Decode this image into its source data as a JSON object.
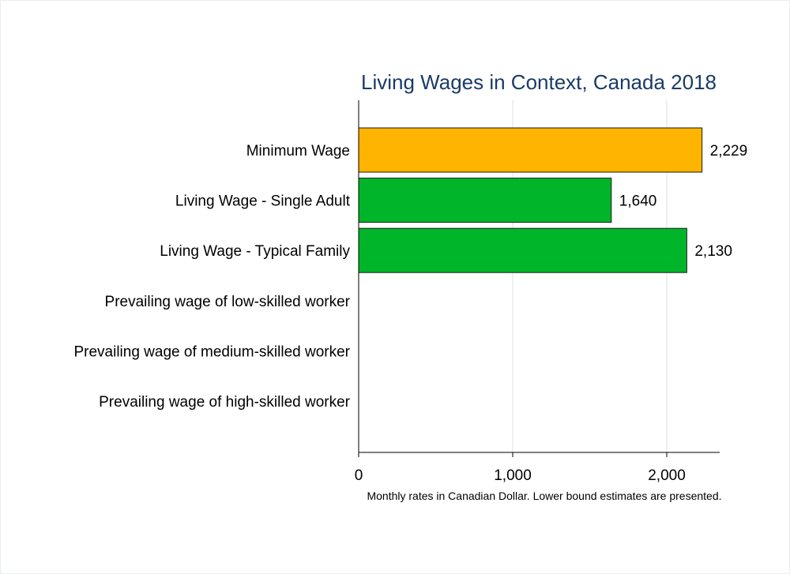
{
  "chart_data": {
    "type": "bar",
    "orientation": "horizontal",
    "title": "Living Wages in Context, Canada 2018",
    "categories": [
      "Minimum Wage",
      "Living Wage - Single Adult",
      "Living Wage - Typical Family",
      "Prevailing wage of low-skilled worker",
      "Prevailing wage of medium-skilled worker",
      "Prevailing wage of high-skilled worker"
    ],
    "values": [
      2229,
      1640,
      2130,
      null,
      null,
      null
    ],
    "value_labels": [
      "2,229",
      "1,640",
      "2,130",
      "",
      "",
      ""
    ],
    "bar_colors": [
      "#ffb400",
      "#00b52a",
      "#00b52a",
      "#00b52a",
      "#00b52a",
      "#00b52a"
    ],
    "xlim": [
      0,
      2350
    ],
    "xticks": [
      0,
      1000,
      2000
    ],
    "xtick_labels": [
      "0",
      "1,000",
      "2,000"
    ],
    "grid": true,
    "note": "Monthly rates in Canadian Dollar. Lower bound estimates are presented."
  }
}
